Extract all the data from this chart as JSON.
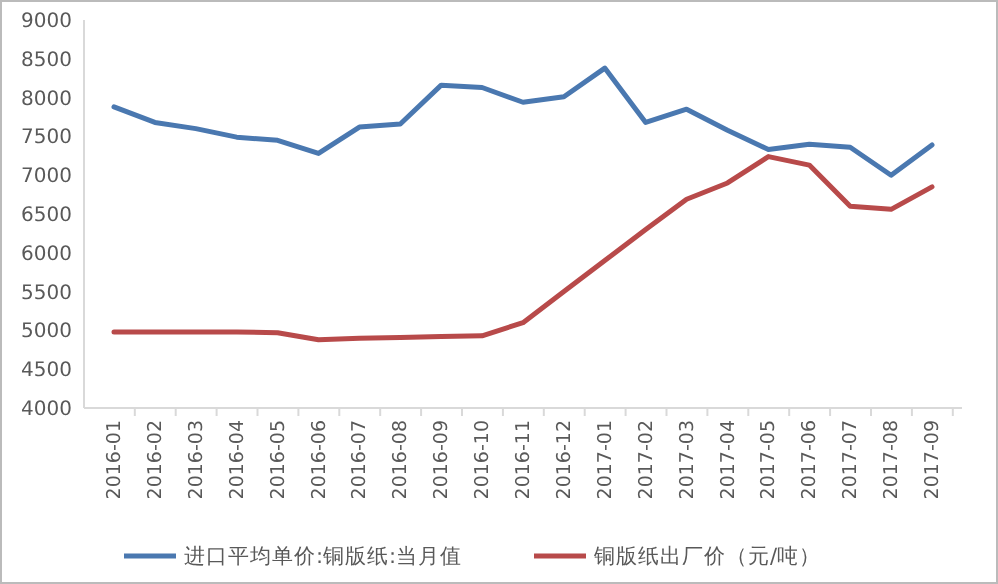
{
  "chart_data": {
    "type": "line",
    "categories": [
      "2016-01",
      "2016-02",
      "2016-03",
      "2016-04",
      "2016-05",
      "2016-06",
      "2016-07",
      "2016-08",
      "2016-09",
      "2016-10",
      "2016-11",
      "2016-12",
      "2017-01",
      "2017-02",
      "2017-03",
      "2017-04",
      "2017-05",
      "2017-06",
      "2017-07",
      "2017-08",
      "2017-09"
    ],
    "series": [
      {
        "name": "进口平均单价:铜版纸:当月值",
        "color": "#4a78b0",
        "values": [
          7880,
          7680,
          7600,
          7490,
          7450,
          7280,
          7620,
          7660,
          8160,
          8130,
          7940,
          8010,
          8380,
          7680,
          7850,
          7580,
          7330,
          7400,
          7360,
          7000,
          7390
        ]
      },
      {
        "name": "铜版纸出厂价（元/吨）",
        "color": "#b84a4a",
        "values": [
          4980,
          4980,
          4980,
          4980,
          4970,
          4880,
          4900,
          4910,
          4920,
          4930,
          5100,
          5500,
          5900,
          6300,
          6690,
          6900,
          7240,
          7130,
          6600,
          6560,
          6850
        ]
      }
    ],
    "ylim": [
      4000,
      9000
    ],
    "yticks": [
      4000,
      4500,
      5000,
      5500,
      6000,
      6500,
      7000,
      7500,
      8000,
      8500,
      9000
    ],
    "grid": false,
    "legend": "bottom",
    "marker": "none",
    "line_style": "solid"
  }
}
